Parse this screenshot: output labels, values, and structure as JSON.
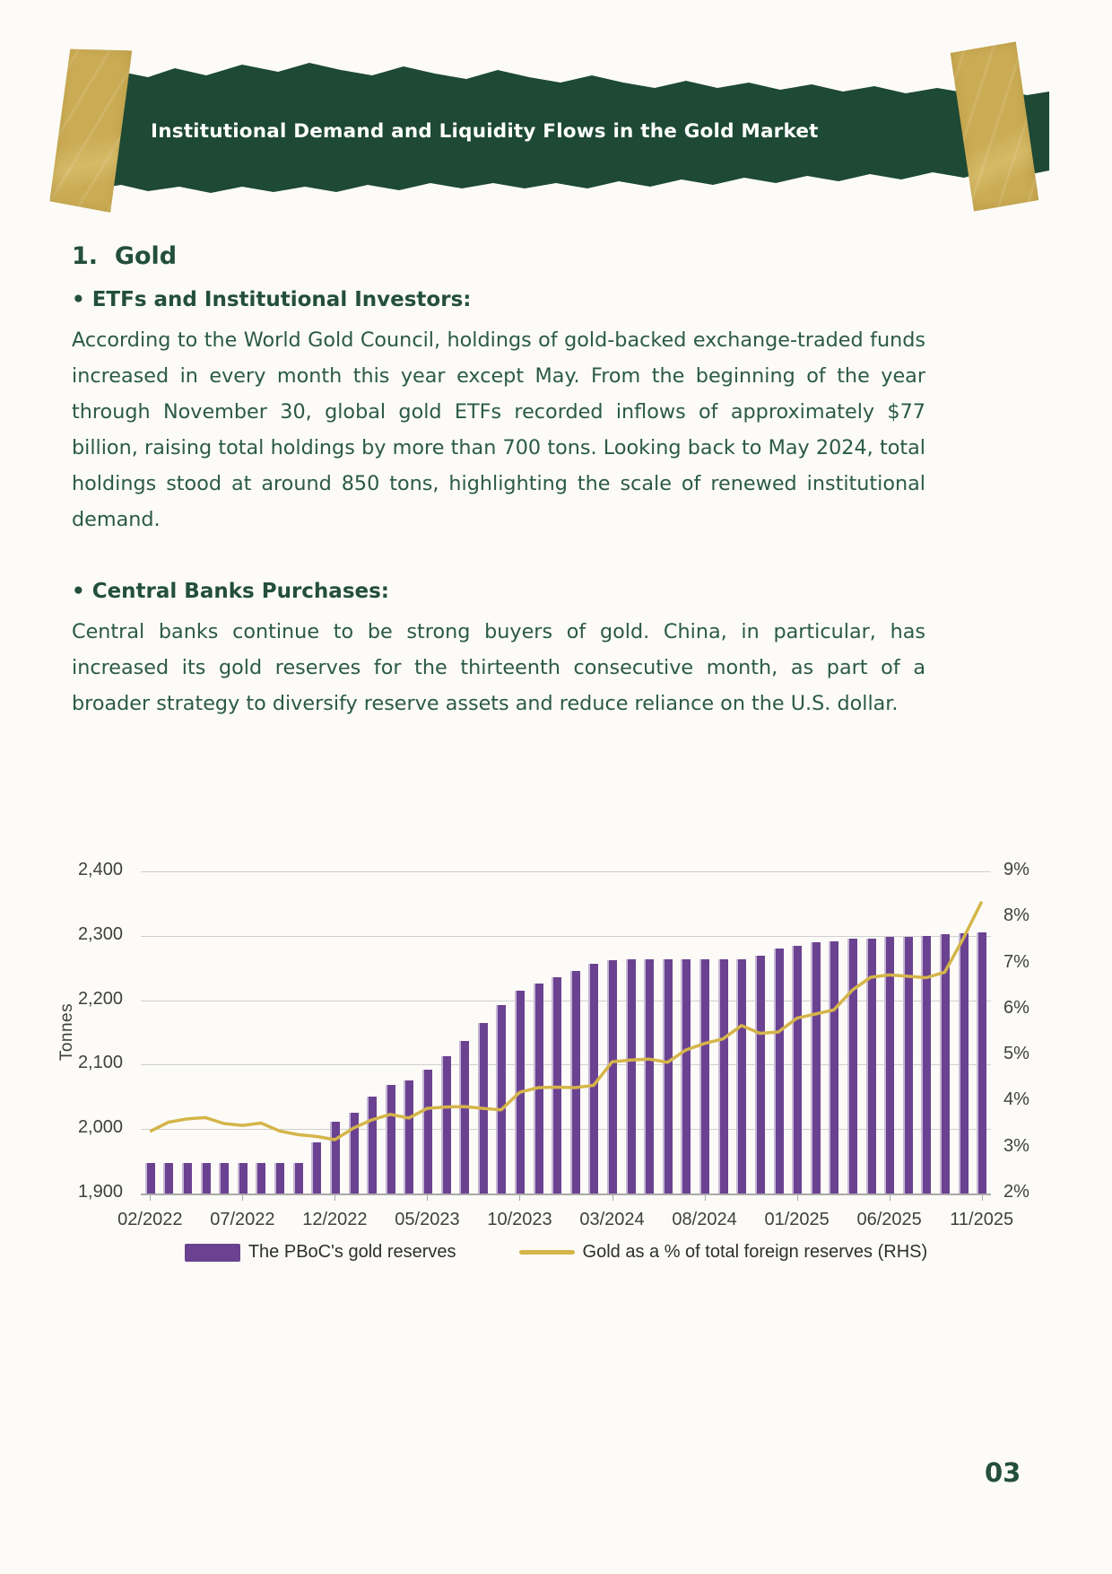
{
  "page": {
    "number": "03",
    "background": "#FCFBF7"
  },
  "banner": {
    "title": "Institutional Demand and Liquidity Flows in the Gold Market",
    "background": "#1D4935",
    "tape_color": "#CBAC55"
  },
  "article": {
    "heading": "1.  Gold",
    "text_color": "#2B5A45",
    "sections": [
      {
        "bullet_heading": "• ETFs and Institutional Investors:",
        "body": "According to the World Gold Council, holdings of gold-backed exchange-traded funds increased in every month this year except May. From the beginning of the year through November 30, global gold ETFs recorded inflows of approximately $77 billion, raising total holdings by more than 700 tons. Looking back to May 2024, total holdings stood at around 850 tons, highlighting the scale of renewed institutional demand."
      },
      {
        "bullet_heading": "• Central Banks Purchases:",
        "body": "Central banks continue to be strong buyers of gold. China, in particular, has increased its gold reserves for the thirteenth consecutive month, as part of a broader strategy to diversify reserve assets and reduce reliance on the U.S. dollar."
      }
    ]
  },
  "chart_data": {
    "type": "bar",
    "subtype": "bar+line dual axis",
    "x": [
      "02/2022",
      "03/2022",
      "04/2022",
      "05/2022",
      "06/2022",
      "07/2022",
      "08/2022",
      "09/2022",
      "10/2022",
      "11/2022",
      "12/2022",
      "01/2023",
      "02/2023",
      "03/2023",
      "04/2023",
      "05/2023",
      "06/2023",
      "07/2023",
      "08/2023",
      "09/2023",
      "10/2023",
      "11/2023",
      "12/2023",
      "01/2024",
      "02/2024",
      "03/2024",
      "04/2024",
      "05/2024",
      "06/2024",
      "07/2024",
      "08/2024",
      "09/2024",
      "10/2024",
      "11/2024",
      "12/2024",
      "01/2025",
      "02/2025",
      "03/2025",
      "04/2025",
      "05/2025",
      "06/2025",
      "07/2025",
      "08/2025",
      "09/2025",
      "10/2025",
      "11/2025"
    ],
    "x_tick_every": 5,
    "series": [
      {
        "name": "The PBoC's gold reserves",
        "type": "bar",
        "axis": "left",
        "color": "#6B4291",
        "values": [
          1948,
          1948,
          1948,
          1948,
          1948,
          1948,
          1948,
          1948,
          1948,
          1980,
          2011,
          2025,
          2050,
          2068,
          2076,
          2092,
          2113,
          2137,
          2165,
          2192,
          2215,
          2226,
          2235,
          2245,
          2257,
          2262,
          2264,
          2264,
          2264,
          2264,
          2264,
          2264,
          2264,
          2269,
          2280,
          2285,
          2290,
          2292,
          2295,
          2296,
          2298,
          2299,
          2300,
          2302,
          2304,
          2306
        ]
      },
      {
        "name": "Gold as a % of total foreign reserves (RHS)",
        "type": "line",
        "axis": "right",
        "color": "#D5B54A",
        "values": [
          3.35,
          3.55,
          3.62,
          3.65,
          3.52,
          3.48,
          3.53,
          3.36,
          3.28,
          3.24,
          3.17,
          3.42,
          3.6,
          3.72,
          3.64,
          3.85,
          3.88,
          3.89,
          3.85,
          3.82,
          4.2,
          4.3,
          4.31,
          4.3,
          4.35,
          4.86,
          4.9,
          4.92,
          4.85,
          5.12,
          5.26,
          5.36,
          5.65,
          5.48,
          5.51,
          5.81,
          5.9,
          5.99,
          6.42,
          6.7,
          6.75,
          6.72,
          6.69,
          6.81,
          7.54,
          8.34
        ]
      }
    ],
    "left_axis": {
      "label": "Tonnes",
      "min": 1900,
      "max": 2400,
      "step": 100
    },
    "right_axis": {
      "min": 2,
      "max": 9,
      "step": 1,
      "suffix": "%"
    },
    "grid": true,
    "legend_position": "bottom"
  }
}
